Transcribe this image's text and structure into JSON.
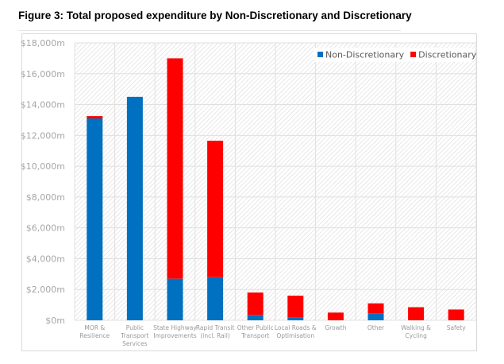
{
  "figure": {
    "title": "Figure 3: Total proposed expenditure by Non-Discretionary and Discretionary"
  },
  "chart_data": {
    "type": "bar",
    "stacked": true,
    "title": "Figure 3: Total proposed expenditure by Non-Discretionary and Discretionary",
    "xlabel": "",
    "ylabel": "",
    "ylim": [
      0,
      18000
    ],
    "yticks": [
      0,
      2000,
      4000,
      6000,
      8000,
      10000,
      12000,
      14000,
      16000,
      18000
    ],
    "ytick_labels": [
      "$0m",
      "$2,000m",
      "$4,000m",
      "$6,000m",
      "$8,000m",
      "$10,000m",
      "$12,000m",
      "$14,000m",
      "$16,000m",
      "$18,000m"
    ],
    "grid": true,
    "legend_position": "top-right",
    "categories": [
      [
        "MOR &",
        "Resilience"
      ],
      [
        "Public",
        "Transport",
        "Services"
      ],
      [
        "State Highway",
        "Improvements"
      ],
      [
        "Rapid Transit",
        "(incl. Rail)"
      ],
      [
        "Other Public",
        "Transport"
      ],
      [
        "Local Roads &",
        "Optimisation"
      ],
      [
        "Growth"
      ],
      [
        "Other"
      ],
      [
        "Walking &",
        "Cycling"
      ],
      [
        "Safety"
      ]
    ],
    "series": [
      {
        "name": "Non-Discretionary",
        "color": "#0070c0",
        "values": [
          13100,
          14500,
          2700,
          2800,
          350,
          200,
          0,
          450,
          0,
          0
        ]
      },
      {
        "name": "Discretionary",
        "color": "#ff0000",
        "values": [
          150,
          0,
          14300,
          8850,
          1450,
          1400,
          500,
          650,
          850,
          700
        ]
      }
    ]
  }
}
